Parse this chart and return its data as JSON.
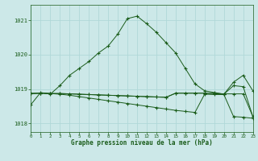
{
  "title": "Graphe pression niveau de la mer (hPa)",
  "bg_color": "#cce8e8",
  "line_color": "#1a5c1a",
  "grid_color": "#b0d8d8",
  "ylim": [
    1017.75,
    1021.45
  ],
  "yticks": [
    1018,
    1019,
    1020,
    1021
  ],
  "xlim": [
    0,
    23
  ],
  "xticks": [
    0,
    1,
    2,
    3,
    4,
    5,
    6,
    7,
    8,
    9,
    10,
    11,
    12,
    13,
    14,
    15,
    16,
    17,
    18,
    19,
    20,
    21,
    22,
    23
  ],
  "series": [
    [
      1018.55,
      1018.9,
      1018.85,
      1019.1,
      1019.4,
      1019.6,
      1019.8,
      1020.05,
      1020.25,
      1020.6,
      1021.05,
      1021.12,
      1020.9,
      1020.65,
      1020.35,
      1020.05,
      1019.6,
      1019.15,
      1018.95,
      1018.9,
      1018.85,
      1019.2,
      1019.4,
      1018.95
    ],
    [
      1018.87,
      1018.88,
      1018.87,
      1018.87,
      1018.86,
      1018.85,
      1018.84,
      1018.83,
      1018.82,
      1018.81,
      1018.8,
      1018.79,
      1018.78,
      1018.77,
      1018.76,
      1018.88,
      1018.88,
      1018.88,
      1018.88,
      1018.88,
      1018.86,
      1018.86,
      1018.86,
      1018.2
    ],
    [
      1018.87,
      1018.88,
      1018.87,
      1018.87,
      1018.86,
      1018.85,
      1018.84,
      1018.83,
      1018.82,
      1018.81,
      1018.8,
      1018.79,
      1018.78,
      1018.77,
      1018.76,
      1018.88,
      1018.88,
      1018.88,
      1018.88,
      1018.87,
      1018.85,
      1019.1,
      1019.07,
      1018.2
    ],
    [
      1018.87,
      1018.88,
      1018.87,
      1018.85,
      1018.82,
      1018.78,
      1018.74,
      1018.7,
      1018.66,
      1018.62,
      1018.58,
      1018.54,
      1018.5,
      1018.46,
      1018.42,
      1018.38,
      1018.35,
      1018.32,
      1018.85,
      1018.84,
      1018.84,
      1018.2,
      1018.18,
      1018.15
    ]
  ]
}
